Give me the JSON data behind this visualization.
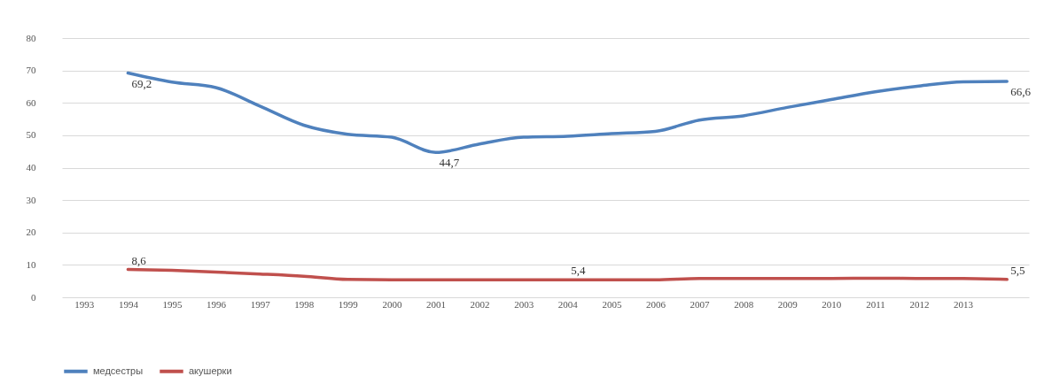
{
  "chart_data": {
    "type": "line",
    "categories": [
      "1993",
      "1994",
      "1995",
      "1996",
      "1997",
      "1998",
      "1999",
      "2000",
      "2001",
      "2002",
      "2003",
      "2004",
      "2005",
      "2006",
      "2007",
      "2008",
      "2009",
      "2010",
      "2011",
      "2012",
      "2013",
      null
    ],
    "series": [
      {
        "name": "медсестры",
        "color": "#4f81bd",
        "values": [
          null,
          69.2,
          66.4,
          64.7,
          59.0,
          53.1,
          50.3,
          49.4,
          44.7,
          47.3,
          49.4,
          49.7,
          50.5,
          51.2,
          54.7,
          56.0,
          58.6,
          61.0,
          63.4,
          65.2,
          66.5,
          66.6
        ],
        "value_labels": [
          null,
          "69,2",
          null,
          null,
          null,
          null,
          null,
          null,
          "44,7",
          null,
          null,
          null,
          null,
          null,
          null,
          null,
          null,
          null,
          null,
          null,
          null,
          "66,6"
        ]
      },
      {
        "name": "акушерки",
        "color": "#c0504d",
        "values": [
          null,
          8.6,
          8.3,
          7.8,
          7.2,
          6.5,
          5.5,
          5.4,
          5.4,
          5.4,
          5.4,
          5.4,
          5.4,
          5.4,
          5.8,
          5.8,
          5.8,
          5.8,
          5.9,
          5.8,
          5.8,
          5.5
        ],
        "value_labels": [
          null,
          "8,6",
          null,
          null,
          null,
          null,
          null,
          null,
          null,
          null,
          null,
          "5,4",
          null,
          null,
          null,
          null,
          null,
          null,
          null,
          null,
          null,
          "5,5"
        ]
      }
    ],
    "ylim": [
      0,
      80
    ],
    "yticks": [
      0,
      10,
      20,
      30,
      40,
      50,
      60,
      70,
      80
    ],
    "grid": "y",
    "legend": "bottom",
    "marker": "none",
    "line_style": "solid"
  }
}
